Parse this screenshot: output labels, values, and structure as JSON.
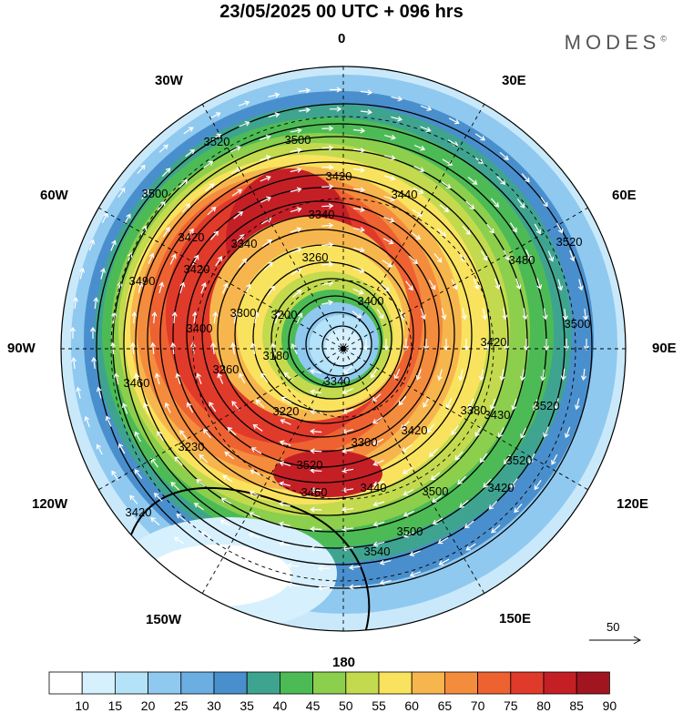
{
  "header": {
    "title": "23/05/2025  00 UTC  + 096 hrs",
    "brand": "MODES",
    "brand_mark": "©"
  },
  "longitude_labels": {
    "top": "0",
    "top_right": "30E",
    "upper_right": "60E",
    "right": "90E",
    "lower_right": "120E",
    "bottom_right": "150E",
    "bottom": "180",
    "bottom_left": "150W",
    "lower_left": "120W",
    "left": "90W",
    "upper_left": "60W",
    "top_left": "30W"
  },
  "contour_labels": [
    "3520",
    "3500",
    "3420",
    "3440",
    "3500",
    "3340",
    "3420",
    "3260",
    "3480",
    "3520",
    "3340",
    "3490",
    "3420",
    "3400",
    "3500",
    "3200",
    "3300",
    "3400",
    "3420",
    "3180",
    "3260",
    "3340",
    "3460",
    "3430",
    "3220",
    "3380",
    "3520",
    "3300",
    "3420",
    "3230",
    "3520",
    "3460",
    "3440",
    "3500",
    "3420",
    "3520",
    "3540",
    "3420",
    "3500"
  ],
  "colorbar": {
    "labels": [
      "10",
      "15",
      "20",
      "25",
      "30",
      "35",
      "40",
      "45",
      "50",
      "55",
      "60",
      "65",
      "70",
      "75",
      "80",
      "85",
      "90"
    ],
    "colors": [
      "#ffffff",
      "#d7f0fd",
      "#b4e2f8",
      "#90c9ef",
      "#6aaee2",
      "#4a8fcd",
      "#3fa48f",
      "#4dbb55",
      "#8ccf4d",
      "#c4da4e",
      "#f9e35e",
      "#f7b64d",
      "#f48c3d",
      "#ee6232",
      "#e03a2b",
      "#c51f26",
      "#a01520"
    ]
  },
  "reference_vector": {
    "label": "50"
  }
}
